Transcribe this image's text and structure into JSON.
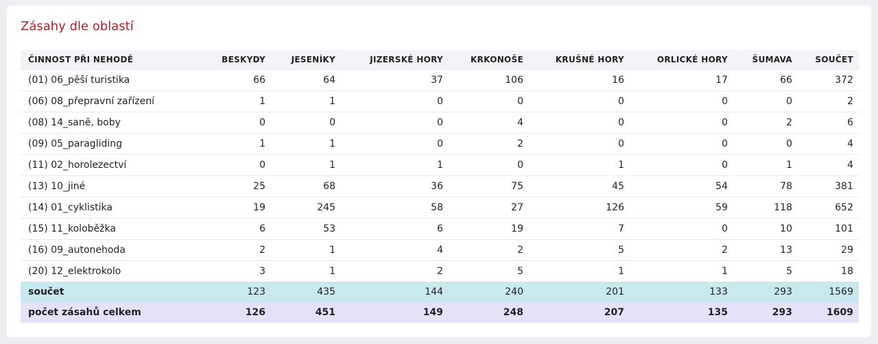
{
  "header": {
    "title": "Zásahy dle oblastí"
  },
  "table": {
    "columns": [
      "ČINNOST PŘI NEHODĚ",
      "BESKYDY",
      "JESENÍKY",
      "JIZERSKÉ HORY",
      "KRKONOŠE",
      "KRUŠNÉ HORY",
      "ORLICKÉ HORY",
      "ŠUMAVA",
      "SOUČET"
    ],
    "rows": [
      [
        "(01) 06_pěší turistika",
        66,
        64,
        37,
        106,
        16,
        17,
        66,
        372
      ],
      [
        "(06) 08_přepravní zařízení",
        1,
        1,
        0,
        0,
        0,
        0,
        0,
        2
      ],
      [
        "(08) 14_saně, boby",
        0,
        0,
        0,
        4,
        0,
        0,
        2,
        6
      ],
      [
        "(09) 05_paragliding",
        1,
        1,
        0,
        2,
        0,
        0,
        0,
        4
      ],
      [
        "(11) 02_horolezectví",
        0,
        1,
        1,
        0,
        1,
        0,
        1,
        4
      ],
      [
        "(13) 10_jiné",
        25,
        68,
        36,
        75,
        45,
        54,
        78,
        381
      ],
      [
        "(14) 01_cyklistika",
        19,
        245,
        58,
        27,
        126,
        59,
        118,
        652
      ],
      [
        "(15) 11_koloběžka",
        6,
        53,
        6,
        19,
        7,
        0,
        10,
        101
      ],
      [
        "(16) 09_autonehoda",
        2,
        1,
        4,
        2,
        5,
        2,
        13,
        29
      ],
      [
        "(20) 12_elektrokolo",
        3,
        1,
        2,
        5,
        1,
        1,
        5,
        18
      ]
    ],
    "sum_row": [
      "součet",
      123,
      435,
      144,
      240,
      201,
      133,
      293,
      1569
    ],
    "total_row": [
      "počet zásahů celkem",
      126,
      451,
      149,
      248,
      207,
      135,
      293,
      1609
    ]
  }
}
